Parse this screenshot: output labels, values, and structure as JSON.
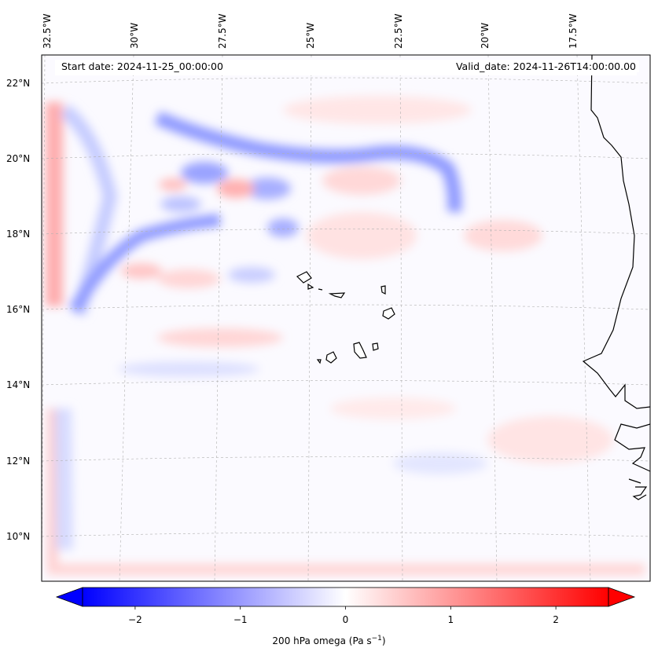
{
  "header": {
    "start_date": "Start date: 2024-11-25_00:00:00",
    "valid_date": "Valid_date: 2024-11-26T14:00:00.00"
  },
  "longitude_labels": [
    "32.5°W",
    "30°W",
    "27.5°W",
    "25°W",
    "22.5°W",
    "20°W",
    "17.5°W"
  ],
  "latitude_labels": [
    "22°N",
    "20°N",
    "18°N",
    "16°N",
    "14°N",
    "12°N",
    "10°N"
  ],
  "colorbar": {
    "label_prefix": "200 hPa omega (Pa s",
    "label_exp": "−1",
    "label_suffix": ")",
    "ticks": [
      "−2",
      "−1",
      "0",
      "1",
      "2"
    ],
    "tick_values": [
      -2,
      -1,
      0,
      1,
      2
    ],
    "range": [
      -2.5,
      2.5
    ],
    "negative_color": "#0000ff",
    "zero_color": "#ffffff",
    "positive_color": "#ff0000"
  },
  "colors": {
    "coastline": "#000000",
    "gridline": "#b0b0b0"
  }
}
